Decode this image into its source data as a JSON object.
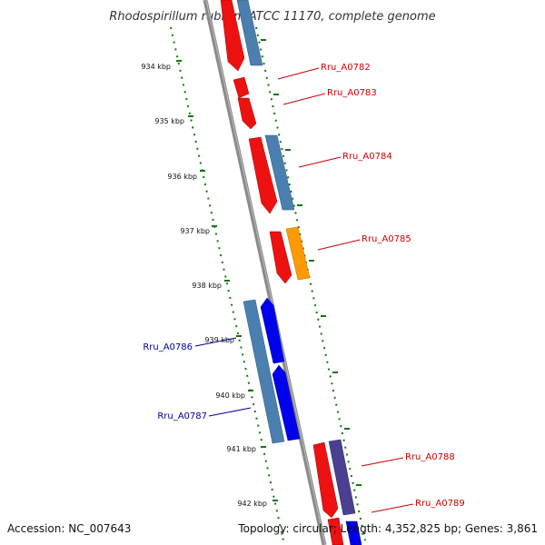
{
  "title": "Rhodospirillum rubrum ATCC 11170, complete genome",
  "footer": {
    "accession": "Accession: NC_007643",
    "topology": "Topology: circular; Length: 4,352,825 bp; Genes: 3,861"
  },
  "colors": {
    "backbone": "#888888",
    "tick": "#117711",
    "forward_label": "#cc0000",
    "reverse_label": "#000099",
    "red_gene": "#ee1111",
    "steel_gene": "#4a7fb0",
    "orange_gene": "#ff9900",
    "blue_gene": "#0000ee",
    "purple_gene": "#4b3f8f"
  },
  "ticks": [
    {
      "label": "934 kbp"
    },
    {
      "label": "935 kbp"
    },
    {
      "label": "936 kbp"
    },
    {
      "label": "937 kbp"
    },
    {
      "label": "938 kbp"
    },
    {
      "label": "939 kbp"
    },
    {
      "label": "940 kbp"
    },
    {
      "label": "941 kbp"
    },
    {
      "label": "942 kbp"
    }
  ],
  "gene_labels": [
    {
      "text": "Rru_A0782",
      "strand": "forward"
    },
    {
      "text": "Rru_A0783",
      "strand": "forward"
    },
    {
      "text": "Rru_A0784",
      "strand": "forward"
    },
    {
      "text": "Rru_A0785",
      "strand": "forward"
    },
    {
      "text": "Rru_A0786",
      "strand": "reverse"
    },
    {
      "text": "Rru_A0787",
      "strand": "reverse"
    },
    {
      "text": "Rru_A0788",
      "strand": "forward"
    },
    {
      "text": "Rru_A0789",
      "strand": "forward"
    }
  ]
}
